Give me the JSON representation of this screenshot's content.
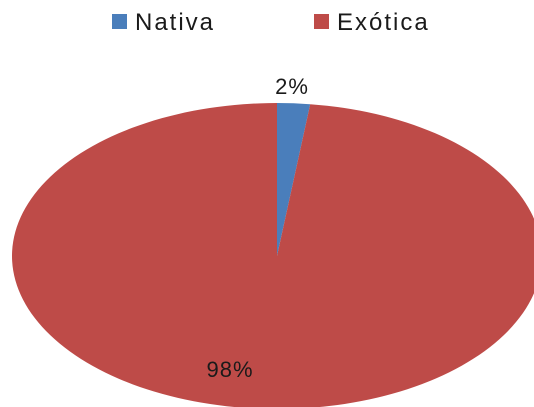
{
  "chart_data": {
    "type": "pie",
    "title": "",
    "slices": [
      {
        "name": "Nativa",
        "value": 2,
        "label": "2%",
        "color": "#4a7ebb"
      },
      {
        "name": "Exótica",
        "value": 98,
        "label": "98%",
        "color": "#be4b48"
      }
    ],
    "legend": {
      "placement": "top"
    },
    "start_angle_deg": 0,
    "direction": "clockwise"
  }
}
